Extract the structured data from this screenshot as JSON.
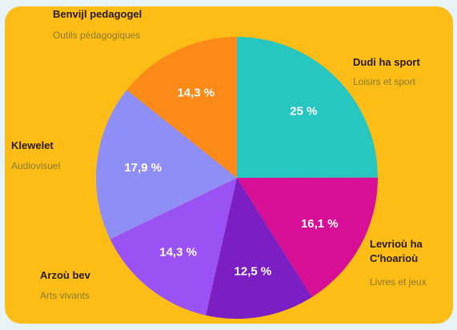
{
  "chart_data": {
    "type": "pie",
    "colors": {
      "panel": "#fbbd16",
      "backdrop": "#e8f3f8"
    },
    "slices": [
      {
        "main_label": "Dudi ha sport",
        "sub_label": "Loisirs et sport",
        "value": 25,
        "value_label": "25 %",
        "color": "#27c6c0"
      },
      {
        "main_label": "Levrioù ha C'hoarioù",
        "sub_label": "Livres et jeux",
        "value": 16.1,
        "value_label": "16,1 %",
        "color": "#d60f96"
      },
      {
        "main_label": "",
        "sub_label": "",
        "value": 12.5,
        "value_label": "12,5 %",
        "color": "#7b1fc4"
      },
      {
        "main_label": "Arzoù bev",
        "sub_label": "Arts vivants",
        "value": 14.3,
        "value_label": "14,3 %",
        "color": "#9a52f4"
      },
      {
        "main_label": "Klewelet",
        "sub_label": "Audiovisuel",
        "value": 17.9,
        "value_label": "17,9 %",
        "color": "#8f8ef6"
      },
      {
        "main_label": "Benvijl pedagogel",
        "sub_label": "Outils pédagogiques",
        "value": 14.3,
        "value_label": "14,3 %",
        "color": "#fb8a18"
      }
    ]
  }
}
